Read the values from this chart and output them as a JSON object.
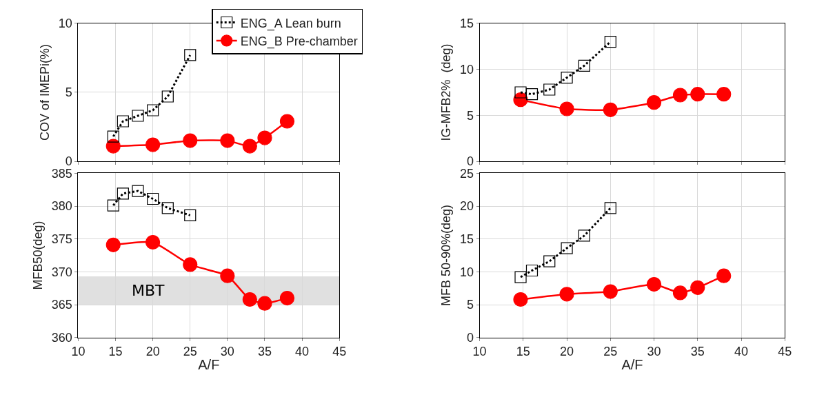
{
  "chart_data": [
    {
      "type": "line",
      "ylabel": "COV of IMEPi(%)",
      "xlim": [
        10,
        45
      ],
      "xticks": [
        10,
        15,
        20,
        25,
        30,
        35,
        40,
        45
      ],
      "ylim": [
        0,
        10
      ],
      "yticks": [
        0,
        5,
        10
      ],
      "grid": true,
      "legend": "top",
      "tick_labels": "y",
      "series": [
        {
          "name": "ENG_A Lean burn",
          "color": "#000000",
          "marker": "square",
          "line_style": "dotted",
          "x": [
            14.7,
            16,
            18,
            20,
            22,
            25
          ],
          "values": [
            1.8,
            2.9,
            3.3,
            3.7,
            4.7,
            7.7
          ]
        },
        {
          "name": "ENG_B Pre-chamber",
          "color": "#ff0000",
          "marker": "circle",
          "line_style": "solid",
          "x": [
            14.7,
            20,
            25,
            30,
            33,
            35,
            38
          ],
          "values": [
            1.1,
            1.2,
            1.5,
            1.5,
            1.1,
            1.7,
            2.9
          ]
        }
      ]
    },
    {
      "type": "line",
      "ylabel": "IG-MFB2%  (deg)",
      "xlim": [
        10,
        45
      ],
      "xticks": [
        10,
        15,
        20,
        25,
        30,
        35,
        40,
        45
      ],
      "ylim": [
        0,
        15
      ],
      "yticks": [
        0,
        5,
        10,
        15
      ],
      "grid": true,
      "tick_labels": "y",
      "series": [
        {
          "color": "#000000",
          "marker": "square",
          "line_style": "dotted",
          "x": [
            14.7,
            16,
            18,
            20,
            22,
            25
          ],
          "values": [
            7.5,
            7.3,
            7.8,
            9.1,
            10.4,
            13.0
          ]
        },
        {
          "color": "#ff0000",
          "marker": "circle",
          "line_style": "solid",
          "x": [
            14.7,
            20,
            25,
            30,
            33,
            35,
            38
          ],
          "values": [
            6.7,
            5.7,
            5.6,
            6.4,
            7.2,
            7.3,
            7.3
          ]
        }
      ]
    },
    {
      "type": "line",
      "xlabel": "A/F",
      "ylabel": "MFB50(deg)",
      "xlim": [
        10,
        45
      ],
      "xticks": [
        10,
        15,
        20,
        25,
        30,
        35,
        40,
        45
      ],
      "ylim": [
        360,
        385
      ],
      "yticks": [
        360,
        365,
        370,
        375,
        380,
        385
      ],
      "grid": true,
      "bands": [
        {
          "axis": "y",
          "from": 365,
          "to": 369.3,
          "label": "MBT",
          "color": "#e0e0e0"
        }
      ],
      "series": [
        {
          "color": "#000000",
          "marker": "square",
          "line_style": "dotted",
          "x": [
            14.7,
            16,
            18,
            20,
            22,
            25
          ],
          "values": [
            380.1,
            381.9,
            382.3,
            381.1,
            379.7,
            378.6
          ]
        },
        {
          "color": "#ff0000",
          "marker": "circle",
          "line_style": "solid",
          "x": [
            14.7,
            20,
            25,
            30,
            33,
            35,
            38
          ],
          "values": [
            374.1,
            374.5,
            371.1,
            369.4,
            365.8,
            365.2,
            366.0
          ]
        }
      ]
    },
    {
      "type": "line",
      "xlabel": "A/F",
      "ylabel": "MFB 50-90%(deg)",
      "xlim": [
        10,
        45
      ],
      "xticks": [
        10,
        15,
        20,
        25,
        30,
        35,
        40,
        45
      ],
      "ylim": [
        0,
        25
      ],
      "yticks": [
        0,
        5,
        10,
        15,
        20,
        25
      ],
      "grid": true,
      "series": [
        {
          "color": "#000000",
          "marker": "square",
          "line_style": "dotted",
          "x": [
            14.7,
            16,
            18,
            20,
            22,
            25
          ],
          "values": [
            9.2,
            10.2,
            11.6,
            13.6,
            15.5,
            19.7
          ]
        },
        {
          "color": "#ff0000",
          "marker": "circle",
          "line_style": "solid",
          "x": [
            14.7,
            20,
            25,
            30,
            33,
            35,
            38
          ],
          "values": [
            5.8,
            6.6,
            7.0,
            8.1,
            6.8,
            7.6,
            9.4
          ]
        }
      ]
    }
  ]
}
